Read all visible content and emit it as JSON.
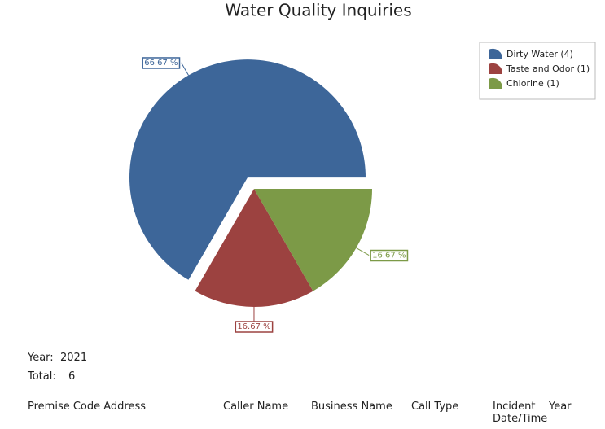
{
  "chart_data": {
    "type": "pie",
    "title": "Water Quality Inquiries",
    "categories": [
      "Dirty Water (4)",
      "Taste and Odor (1)",
      "Chlorine (1)"
    ],
    "values": [
      66.67,
      16.67,
      16.67
    ],
    "value_labels": [
      "66.67 %",
      "16.67 %",
      "16.67 %"
    ],
    "colors": [
      "#3d6699",
      "#9c4240",
      "#7c9a47"
    ],
    "exploded": [
      true,
      false,
      false
    ],
    "legend": "top-right"
  },
  "report": {
    "year_label": "Year:",
    "year": "2021",
    "total_label": "Total:",
    "total": "6",
    "columns": [
      "Premise Code Address",
      "Caller Name",
      "Business Name",
      "Call Type",
      "Incident Date/Time",
      "Year"
    ]
  }
}
